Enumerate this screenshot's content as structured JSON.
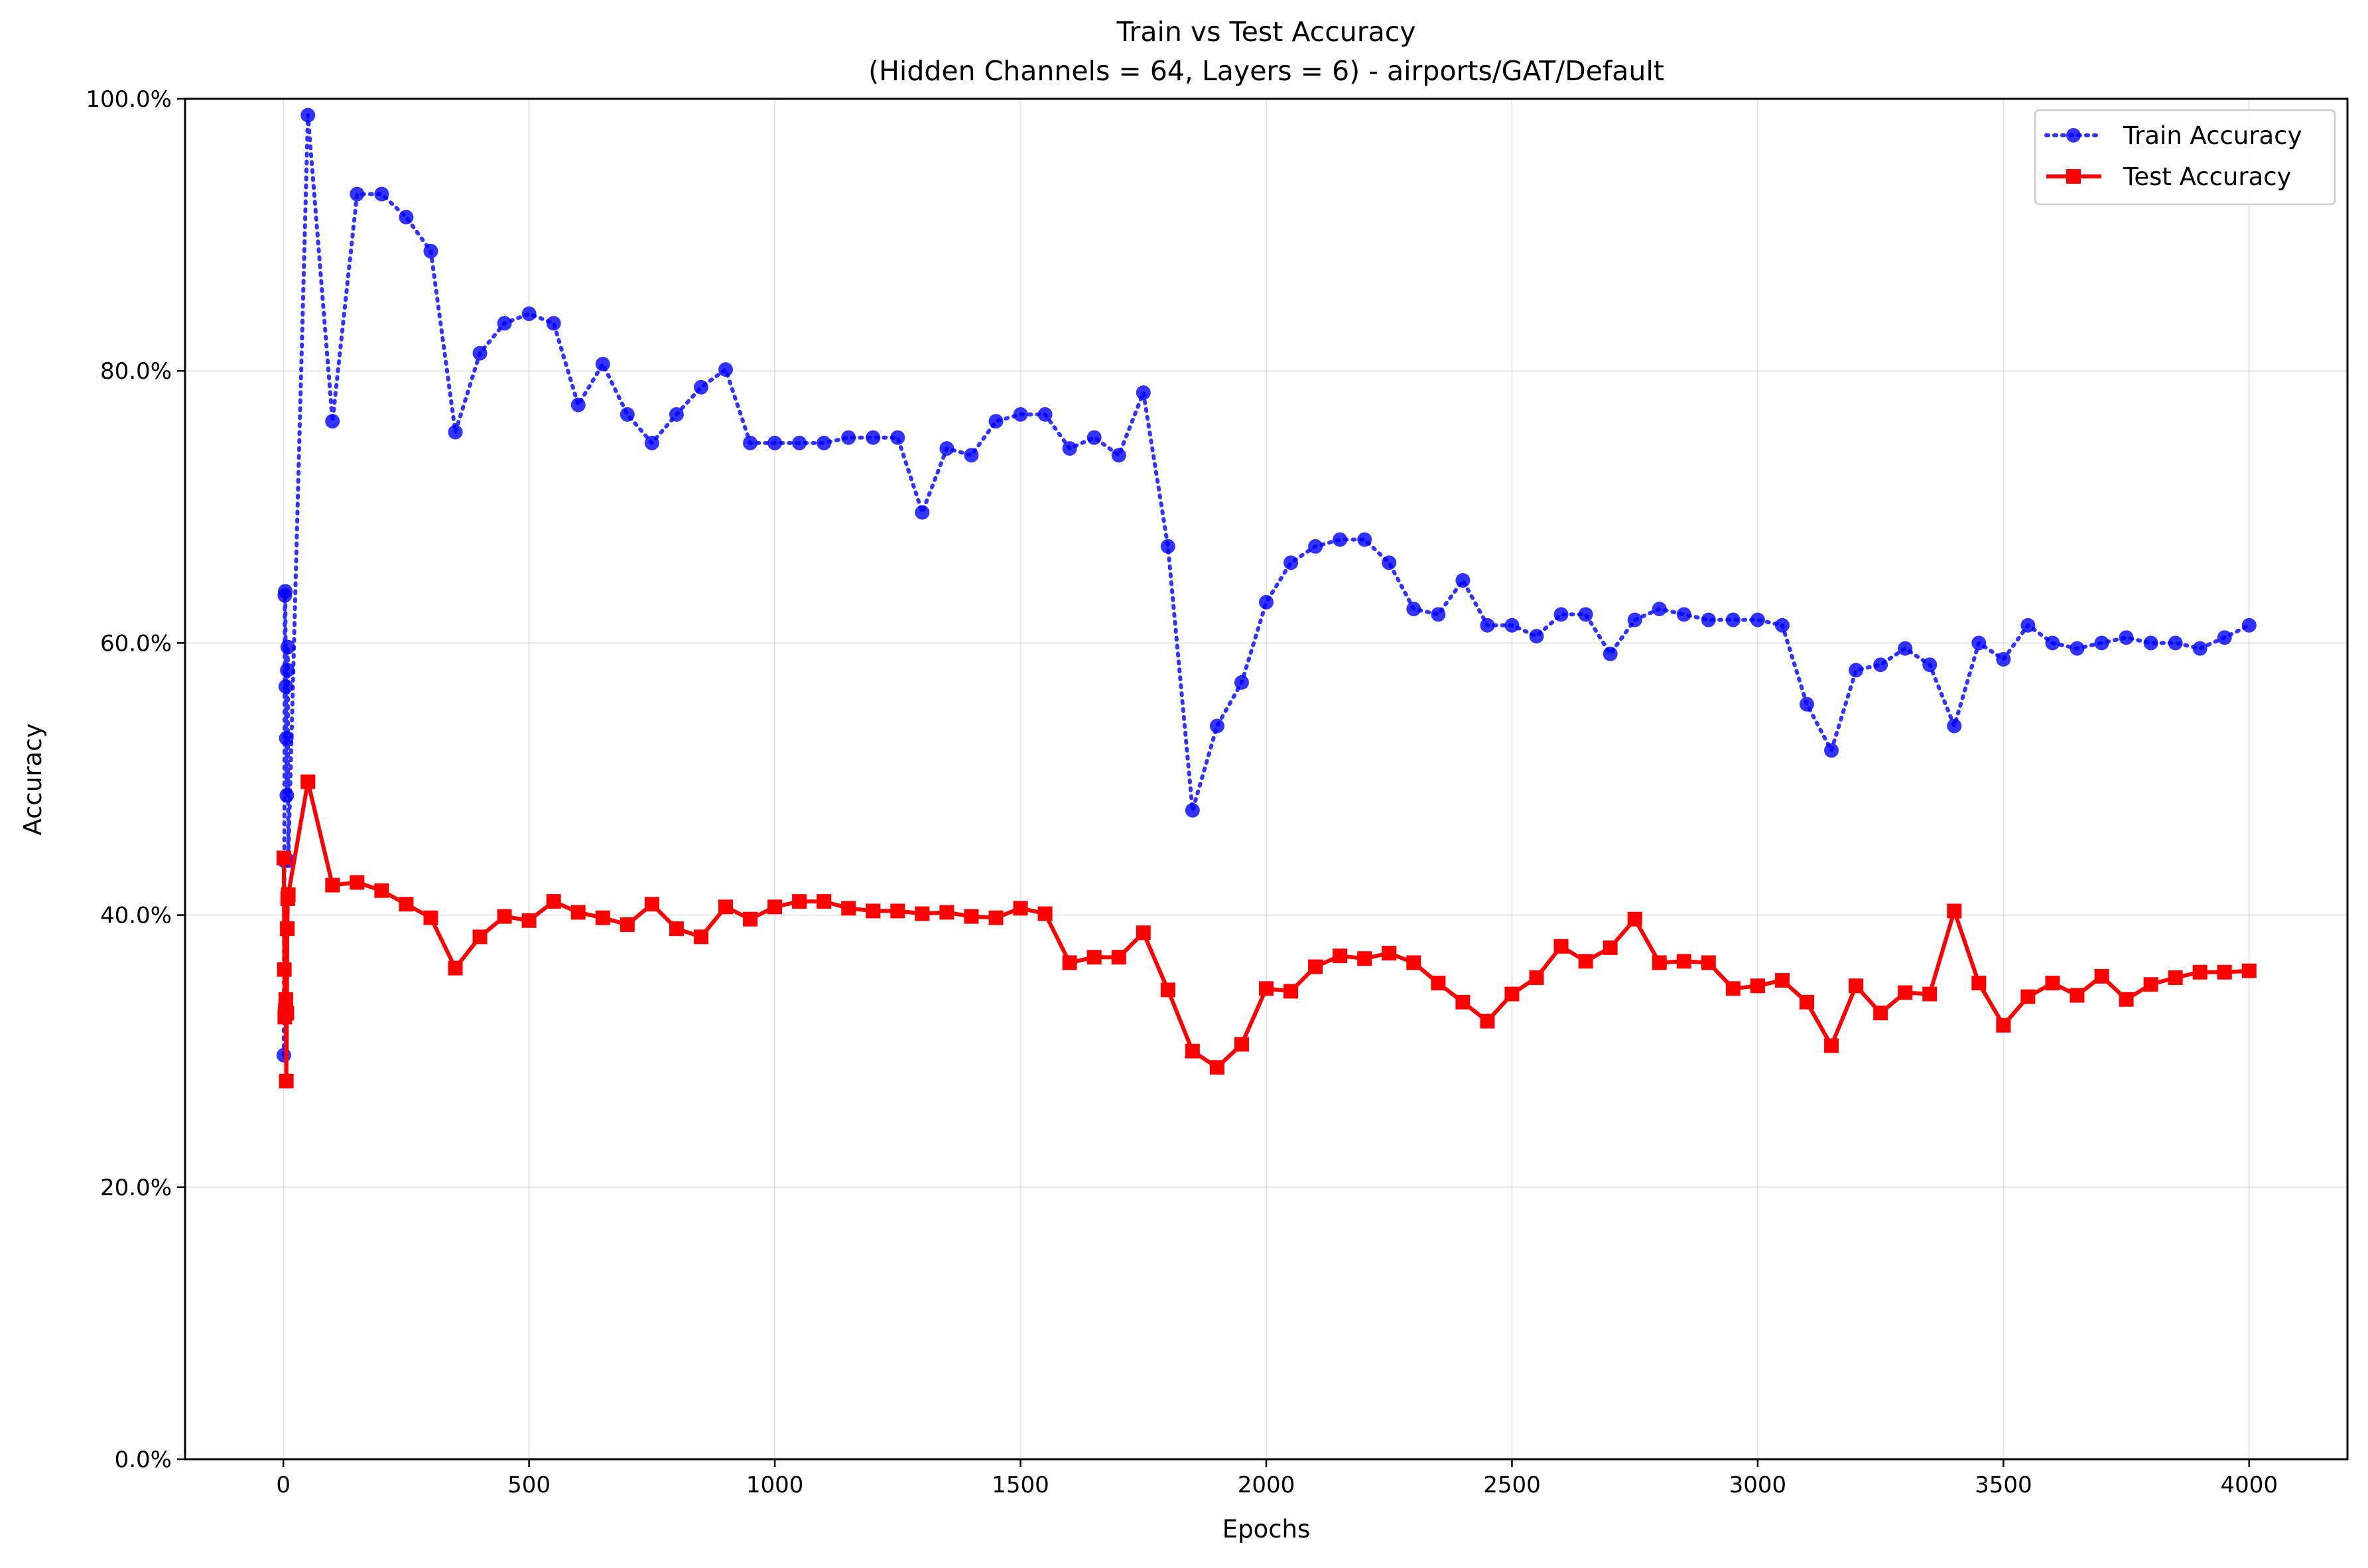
{
  "chart_data": {
    "type": "line",
    "title": "Train vs Test Accuracy",
    "subtitle": "(Hidden Channels = 64, Layers = 6) - airports/GAT/Default",
    "xlabel": "Epochs",
    "ylabel": "Accuracy",
    "xlim": [
      -200,
      4200
    ],
    "ylim": [
      0,
      100
    ],
    "x_ticks": [
      0,
      500,
      1000,
      1500,
      2000,
      2500,
      3000,
      3500,
      4000
    ],
    "x_tick_labels": [
      "0",
      "500",
      "1000",
      "1500",
      "2000",
      "2500",
      "3000",
      "3500",
      "4000"
    ],
    "y_ticks": [
      0,
      20,
      40,
      60,
      80,
      100
    ],
    "y_tick_labels": [
      "0.0%",
      "20.0%",
      "40.0%",
      "60.0%",
      "80.0%",
      "100.0%"
    ],
    "grid": true,
    "legend_position": "top-right",
    "x": [
      1,
      2,
      3,
      4,
      5,
      6,
      7,
      8,
      9,
      10,
      50,
      100,
      150,
      200,
      250,
      300,
      350,
      400,
      450,
      500,
      550,
      600,
      650,
      700,
      750,
      800,
      850,
      900,
      950,
      1000,
      1050,
      1100,
      1150,
      1200,
      1250,
      1300,
      1350,
      1400,
      1450,
      1500,
      1550,
      1600,
      1650,
      1700,
      1750,
      1800,
      1850,
      1900,
      1950,
      2000,
      2050,
      2100,
      2150,
      2200,
      2250,
      2300,
      2350,
      2400,
      2450,
      2500,
      2550,
      2600,
      2650,
      2700,
      2750,
      2800,
      2850,
      2900,
      2950,
      3000,
      3050,
      3100,
      3150,
      3200,
      3250,
      3300,
      3350,
      3400,
      3450,
      3500,
      3550,
      3600,
      3650,
      3700,
      3750,
      3800,
      3850,
      3900,
      3950,
      4000
    ],
    "series": [
      {
        "name": "Train Accuracy",
        "color": "#0000ff",
        "line_style": "dotted",
        "marker": "circle",
        "values": [
          29.7,
          44.0,
          63.5,
          63.8,
          56.8,
          53.0,
          48.8,
          58.0,
          59.7,
          44.0,
          98.8,
          76.3,
          93.0,
          93.0,
          91.3,
          88.8,
          75.5,
          81.3,
          83.5,
          84.2,
          83.5,
          77.5,
          80.5,
          76.8,
          74.7,
          76.8,
          78.8,
          80.1,
          74.7,
          74.7,
          74.7,
          74.7,
          75.1,
          75.1,
          75.1,
          69.6,
          74.3,
          73.8,
          76.3,
          76.8,
          76.8,
          74.3,
          75.1,
          73.8,
          78.4,
          67.1,
          47.7,
          53.9,
          57.1,
          63.0,
          65.9,
          67.1,
          67.6,
          67.6,
          65.9,
          62.5,
          62.1,
          64.6,
          61.3,
          61.3,
          60.5,
          62.1,
          62.1,
          59.2,
          61.7,
          62.5,
          62.1,
          61.7,
          61.7,
          61.7,
          61.3,
          55.5,
          52.1,
          58.0,
          58.4,
          59.6,
          58.4,
          53.9,
          60.0,
          58.8,
          61.3,
          60.0,
          59.6,
          60.0,
          60.4,
          60.0,
          60.0,
          59.6,
          60.4,
          61.3
        ]
      },
      {
        "name": "Test Accuracy",
        "color": "#ff0000",
        "line_style": "solid",
        "marker": "square",
        "values": [
          44.2,
          36.0,
          32.5,
          33.0,
          33.8,
          27.8,
          32.8,
          39.0,
          41.2,
          41.5,
          49.8,
          42.2,
          42.4,
          41.8,
          40.8,
          39.8,
          36.1,
          38.4,
          39.9,
          39.6,
          41.0,
          40.2,
          39.8,
          39.3,
          40.8,
          39.0,
          38.4,
          40.6,
          39.7,
          40.6,
          41.0,
          41.0,
          40.5,
          40.3,
          40.3,
          40.1,
          40.2,
          39.9,
          39.8,
          40.5,
          40.1,
          36.5,
          36.9,
          36.9,
          38.7,
          34.5,
          30.0,
          28.8,
          30.5,
          34.6,
          34.4,
          36.2,
          37.0,
          36.8,
          37.2,
          36.5,
          35.0,
          33.6,
          32.2,
          34.2,
          35.4,
          37.7,
          36.6,
          37.6,
          39.7,
          36.5,
          36.6,
          36.5,
          34.6,
          34.8,
          35.2,
          33.6,
          30.4,
          34.8,
          32.8,
          34.3,
          34.2,
          40.3,
          35.0,
          31.9,
          34.0,
          35.0,
          34.1,
          35.5,
          33.8,
          34.9,
          35.4,
          35.8,
          35.8,
          35.9
        ]
      }
    ]
  }
}
